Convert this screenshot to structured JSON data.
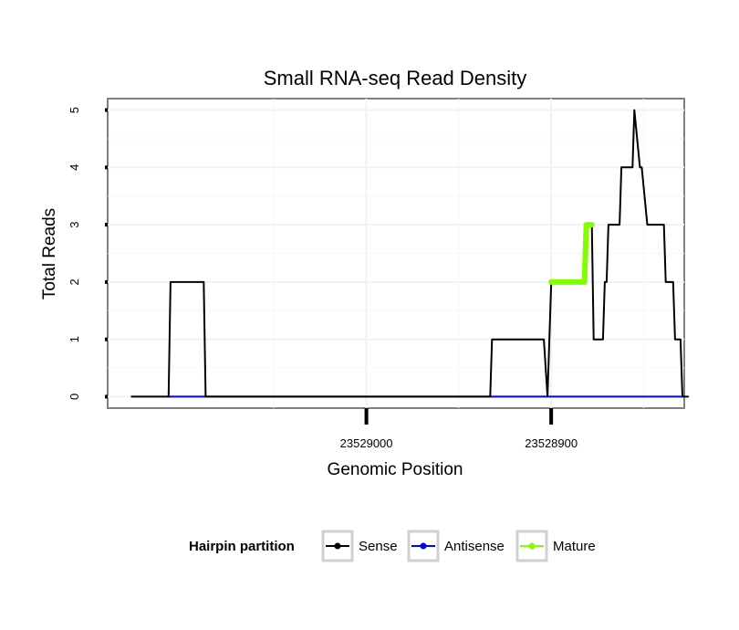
{
  "chart_data": {
    "type": "line",
    "title": "Small RNA-seq Read Density",
    "xlabel": "Genomic Position",
    "ylabel": "Total Reads",
    "x_reversed": true,
    "xlim": [
      23529140,
      23528828
    ],
    "ylim": [
      -0.2,
      5.2
    ],
    "x_ticks": [
      23529000,
      23528900
    ],
    "x_tick_labels": [
      "23529000",
      "23528900"
    ],
    "y_ticks": [
      0,
      1,
      2,
      3,
      4,
      5
    ],
    "y_tick_labels": [
      "0",
      "1",
      "2",
      "3",
      "4",
      "5"
    ],
    "grid": true,
    "legend": {
      "title": "Hairpin partition",
      "position": "bottom",
      "entries": [
        "Sense",
        "Antisense",
        "Mature"
      ]
    },
    "series": [
      {
        "name": "Sense",
        "color": "#000000",
        "x": [
          23529127,
          23529107,
          23529106,
          23529088,
          23529087,
          23528933,
          23528932,
          23528904,
          23528902,
          23528900,
          23528882,
          23528881,
          23528878,
          23528877,
          23528872,
          23528871,
          23528870,
          23528869,
          23528863,
          23528862,
          23528856,
          23528855,
          23528852,
          23528851,
          23528848,
          23528847,
          23528839,
          23528838,
          23528834,
          23528833,
          23528830,
          23528829,
          23528826
        ],
        "y": [
          0,
          0,
          2,
          2,
          0,
          0,
          1,
          1,
          0,
          2,
          2,
          3,
          3,
          1,
          1,
          2,
          2,
          3,
          3,
          4,
          4,
          5,
          4,
          4,
          3,
          3,
          3,
          2,
          2,
          1,
          1,
          0,
          0
        ]
      },
      {
        "name": "Antisense",
        "color": "#0000ff",
        "x": [
          23529107,
          23528829
        ],
        "y": [
          0,
          0
        ]
      },
      {
        "name": "Mature",
        "color": "#7fff00",
        "x": [
          23528900,
          23528882,
          23528881,
          23528878
        ],
        "y": [
          2,
          2,
          3,
          3
        ]
      }
    ]
  }
}
